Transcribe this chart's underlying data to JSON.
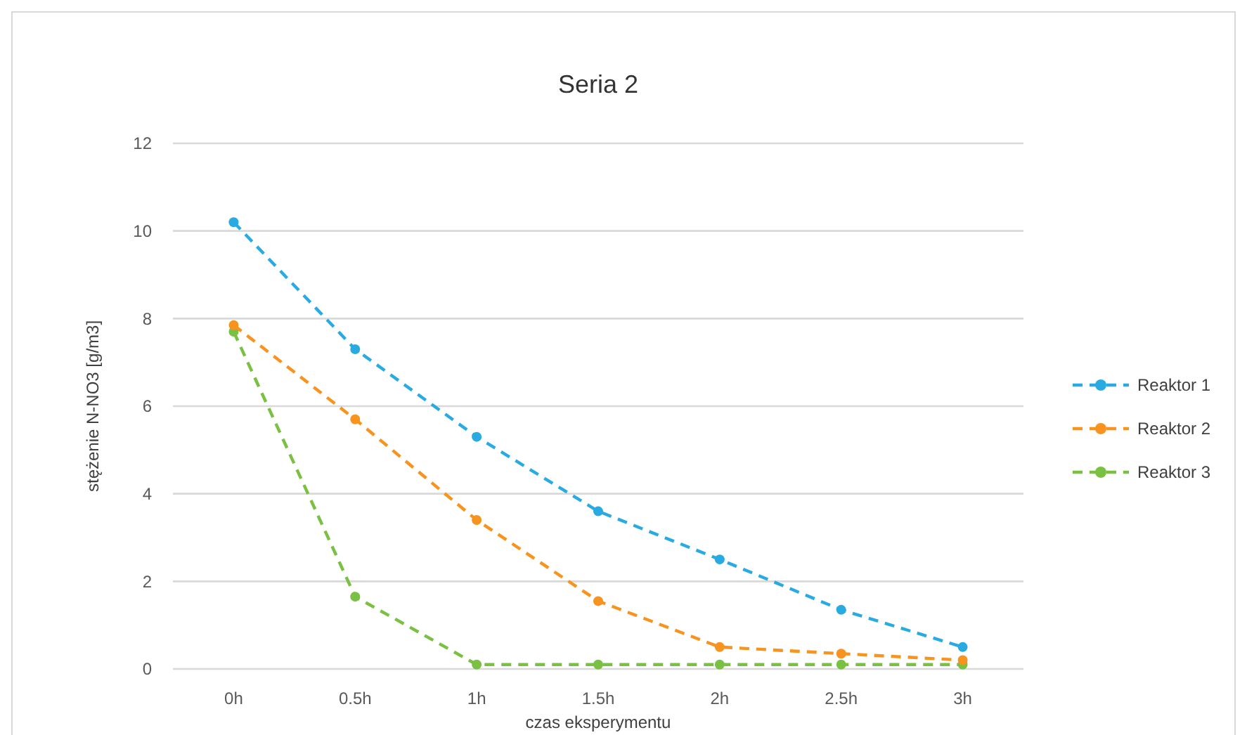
{
  "chart_data": {
    "type": "line",
    "title": "Seria 2",
    "xlabel": "czas eksperymentu",
    "ylabel": "stężenie N-NO3 [g/m3]",
    "categories": [
      "0h",
      "0.5h",
      "1h",
      "1.5h",
      "2h",
      "2.5h",
      "3h"
    ],
    "series": [
      {
        "name": "Reaktor 1",
        "color": "#29abe2",
        "values": [
          10.2,
          7.3,
          5.3,
          3.6,
          2.5,
          1.35,
          0.5
        ]
      },
      {
        "name": "Reaktor 2",
        "color": "#f7931e",
        "values": [
          7.85,
          5.7,
          3.4,
          1.55,
          0.5,
          0.35,
          0.2
        ]
      },
      {
        "name": "Reaktor 3",
        "color": "#7ac143",
        "values": [
          7.7,
          1.65,
          0.1,
          0.1,
          0.1,
          0.1,
          0.1
        ]
      }
    ],
    "ylim": [
      0,
      12
    ],
    "yticks": [
      0,
      2,
      4,
      6,
      8,
      10,
      12
    ],
    "grid": "y",
    "legend": "right",
    "marker": "circle",
    "line_style": "dashed"
  }
}
